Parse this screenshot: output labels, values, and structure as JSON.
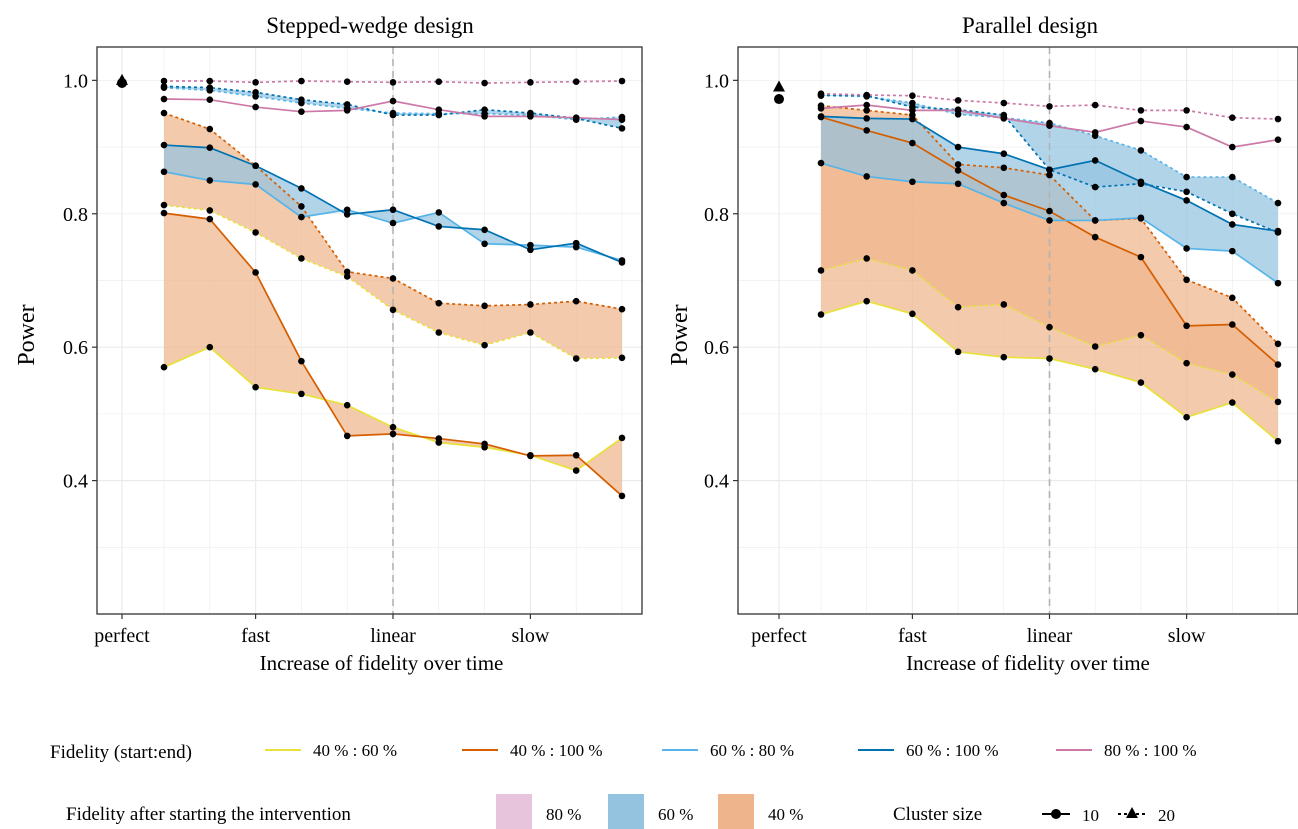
{
  "figure": {
    "legend_fidelity_title": "Fidelity (start:end)",
    "legend_band_title": "Fidelity after starting the intervention",
    "legend_cluster_title": "Cluster size"
  },
  "legend": {
    "fidelity_lines": [
      {
        "label": "40 % : 60 %",
        "color": "#e8e13b"
      },
      {
        "label": "40 % : 100 %",
        "color": "#d55e00"
      },
      {
        "label": "60 % : 80 %",
        "color": "#56b4e9"
      },
      {
        "label": "60 % : 100 %",
        "color": "#0072b2"
      },
      {
        "label": "80 % : 100 %",
        "color": "#cc79a7"
      }
    ],
    "bands": [
      {
        "label": "80 %",
        "color": "#e8c3dc"
      },
      {
        "label": "60 %",
        "color": "#94c3e0"
      },
      {
        "label": "40 %",
        "color": "#eeb58c"
      }
    ],
    "cluster_sizes": [
      {
        "label": "10",
        "marker": "circle",
        "line": "solid"
      },
      {
        "label": "20",
        "marker": "triangle",
        "line": "dotted"
      }
    ]
  },
  "chart_data": [
    {
      "type": "line",
      "title": "Stepped-wedge design",
      "xlabel": "Increase of fidelity over time",
      "ylabel": "Power",
      "ylim": [
        0.2,
        1.05
      ],
      "yticks": [
        0.4,
        0.6,
        0.8,
        1.0
      ],
      "ytick_labels": [
        "0.4",
        "0.6",
        "0.8",
        "1.0"
      ],
      "xtick_labels": [
        "perfect",
        "fast",
        "linear",
        "slow"
      ],
      "x_steps": [
        1,
        2,
        3,
        4,
        5,
        6,
        7,
        8,
        9,
        10,
        11
      ],
      "x_tick_positions": [
        3,
        6,
        9
      ],
      "reference_line_x": 6,
      "perfect_points": [
        {
          "size": "10",
          "value": 0.996
        },
        {
          "size": "20",
          "value": 1.0
        }
      ],
      "series": [
        {
          "fidelity": "40 % : 60 %",
          "size": "10",
          "values": [
            0.57,
            0.6,
            0.54,
            0.53,
            0.513,
            0.48,
            0.457,
            0.45,
            0.438,
            0.415,
            0.464
          ]
        },
        {
          "fidelity": "40 % : 60 %",
          "size": "20",
          "values": [
            0.813,
            0.805,
            0.772,
            0.733,
            0.706,
            0.656,
            0.622,
            0.603,
            0.622,
            0.583,
            0.584
          ]
        },
        {
          "fidelity": "40 % : 100 %",
          "size": "10",
          "values": [
            0.801,
            0.792,
            0.712,
            0.579,
            0.467,
            0.47,
            0.463,
            0.455,
            0.437,
            0.438,
            0.377
          ]
        },
        {
          "fidelity": "40 % : 100 %",
          "size": "20",
          "values": [
            0.951,
            0.927,
            0.872,
            0.811,
            0.713,
            0.703,
            0.666,
            0.662,
            0.664,
            0.669,
            0.657
          ]
        },
        {
          "fidelity": "60 % : 80 %",
          "size": "10",
          "values": [
            0.863,
            0.85,
            0.844,
            0.795,
            0.806,
            0.786,
            0.802,
            0.755,
            0.753,
            0.75,
            0.73
          ]
        },
        {
          "fidelity": "60 % : 80 %",
          "size": "20",
          "values": [
            0.989,
            0.985,
            0.976,
            0.966,
            0.958,
            0.951,
            0.95,
            0.95,
            0.948,
            0.941,
            0.945
          ]
        },
        {
          "fidelity": "60 % : 100 %",
          "size": "10",
          "values": [
            0.903,
            0.899,
            0.872,
            0.838,
            0.799,
            0.806,
            0.781,
            0.776,
            0.746,
            0.756,
            0.727
          ]
        },
        {
          "fidelity": "60 % : 100 %",
          "size": "20",
          "values": [
            0.991,
            0.989,
            0.982,
            0.971,
            0.964,
            0.948,
            0.948,
            0.956,
            0.951,
            0.943,
            0.928
          ]
        },
        {
          "fidelity": "80 % : 100 %",
          "size": "10",
          "values": [
            0.972,
            0.971,
            0.96,
            0.953,
            0.955,
            0.969,
            0.956,
            0.946,
            0.946,
            0.944,
            0.941
          ]
        },
        {
          "fidelity": "80 % : 100 %",
          "size": "20",
          "values": [
            0.999,
            0.999,
            0.997,
            0.999,
            0.998,
            0.997,
            0.998,
            0.996,
            0.997,
            0.998,
            0.999
          ]
        }
      ]
    },
    {
      "type": "line",
      "title": "Parallel design",
      "xlabel": "Increase of fidelity over time",
      "ylabel": "Power",
      "ylim": [
        0.2,
        1.05
      ],
      "yticks": [
        0.4,
        0.6,
        0.8,
        1.0
      ],
      "ytick_labels": [
        "0.4",
        "0.6",
        "0.8",
        "1.0"
      ],
      "xtick_labels": [
        "perfect",
        "fast",
        "linear",
        "slow"
      ],
      "x_steps": [
        1,
        2,
        3,
        4,
        5,
        6,
        7,
        8,
        9,
        10,
        11
      ],
      "x_tick_positions": [
        3,
        6,
        9
      ],
      "reference_line_x": 6,
      "perfect_points": [
        {
          "size": "10",
          "value": 0.972
        },
        {
          "size": "20",
          "value": 0.99
        }
      ],
      "series": [
        {
          "fidelity": "40 % : 60 %",
          "size": "10",
          "values": [
            0.649,
            0.669,
            0.65,
            0.593,
            0.585,
            0.583,
            0.567,
            0.547,
            0.495,
            0.517,
            0.459
          ]
        },
        {
          "fidelity": "40 % : 60 %",
          "size": "20",
          "values": [
            0.715,
            0.733,
            0.715,
            0.66,
            0.664,
            0.63,
            0.601,
            0.618,
            0.576,
            0.559,
            0.518
          ]
        },
        {
          "fidelity": "40 % : 100 %",
          "size": "10",
          "values": [
            0.945,
            0.925,
            0.906,
            0.865,
            0.828,
            0.804,
            0.765,
            0.735,
            0.632,
            0.634,
            0.574
          ]
        },
        {
          "fidelity": "40 % : 100 %",
          "size": "20",
          "values": [
            0.962,
            0.955,
            0.948,
            0.874,
            0.869,
            0.858,
            0.79,
            0.793,
            0.701,
            0.674,
            0.605
          ]
        },
        {
          "fidelity": "60 % : 80 %",
          "size": "10",
          "values": [
            0.876,
            0.856,
            0.848,
            0.845,
            0.816,
            0.79,
            0.79,
            0.794,
            0.748,
            0.744,
            0.696
          ]
        },
        {
          "fidelity": "60 % : 80 %",
          "size": "20",
          "values": [
            0.977,
            0.976,
            0.966,
            0.949,
            0.944,
            0.936,
            0.917,
            0.895,
            0.855,
            0.855,
            0.816
          ]
        },
        {
          "fidelity": "60 % : 100 %",
          "size": "10",
          "values": [
            0.946,
            0.943,
            0.942,
            0.9,
            0.89,
            0.866,
            0.88,
            0.848,
            0.82,
            0.784,
            0.774
          ]
        },
        {
          "fidelity": "60 % : 100 %",
          "size": "20",
          "values": [
            0.978,
            0.977,
            0.96,
            0.956,
            0.948,
            0.866,
            0.84,
            0.845,
            0.833,
            0.8,
            0.772
          ]
        },
        {
          "fidelity": "80 % : 100 %",
          "size": "10",
          "values": [
            0.958,
            0.963,
            0.955,
            0.955,
            0.943,
            0.932,
            0.922,
            0.939,
            0.93,
            0.9,
            0.911
          ]
        },
        {
          "fidelity": "80 % : 100 %",
          "size": "20",
          "values": [
            0.98,
            0.978,
            0.977,
            0.97,
            0.966,
            0.961,
            0.963,
            0.955,
            0.955,
            0.944,
            0.942
          ]
        }
      ]
    }
  ]
}
